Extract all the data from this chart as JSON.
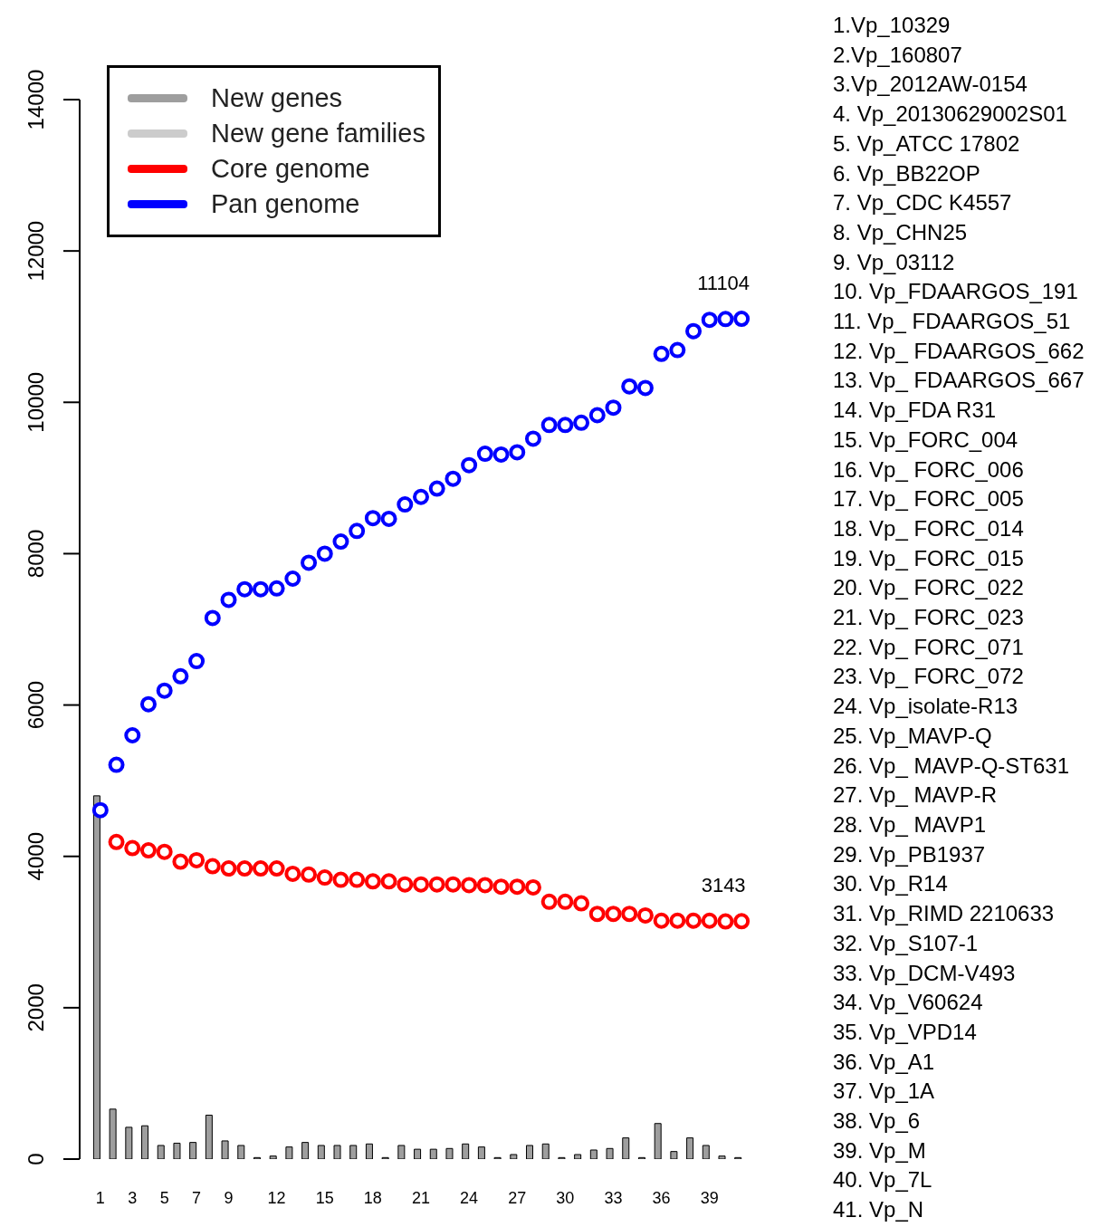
{
  "chart_data": {
    "type": "bar",
    "categories": [
      "1",
      null,
      "3",
      null,
      "5",
      null,
      "7",
      null,
      "9",
      null,
      null,
      "12",
      null,
      null,
      "15",
      null,
      null,
      "18",
      null,
      null,
      "21",
      null,
      null,
      "24",
      null,
      null,
      "27",
      null,
      null,
      "30",
      null,
      null,
      "33",
      null,
      null,
      "36",
      null,
      null,
      "39",
      null,
      null
    ],
    "series": [
      {
        "name": "New genes",
        "color": "#9e9e9e",
        "values": [
          4800,
          660,
          420,
          440,
          180,
          210,
          220,
          580,
          240,
          180,
          20,
          40,
          160,
          220,
          180,
          180,
          180,
          200,
          20,
          180,
          130,
          130,
          140,
          200,
          160,
          20,
          60,
          180,
          200,
          20,
          60,
          120,
          140,
          280,
          20,
          470,
          100,
          280,
          180,
          40,
          20
        ]
      },
      {
        "name": "New gene families",
        "color": "#cccccc",
        "values": [
          null,
          null,
          null,
          null,
          null,
          null,
          null,
          null,
          null,
          null,
          null,
          null,
          null,
          null,
          null,
          null,
          null,
          null,
          null,
          null,
          null,
          null,
          null,
          null,
          null,
          null,
          null,
          null,
          null,
          null,
          null,
          null,
          null,
          null,
          null,
          null,
          null,
          null,
          null,
          null,
          null
        ]
      },
      {
        "name": "Core genome",
        "type": "scatter",
        "color": "#ff0000",
        "values": [
          null,
          4190,
          4110,
          4080,
          4060,
          3930,
          3950,
          3870,
          3840,
          3840,
          3840,
          3840,
          3770,
          3760,
          3720,
          3690,
          3690,
          3670,
          3670,
          3630,
          3630,
          3630,
          3630,
          3620,
          3620,
          3600,
          3600,
          3590,
          3400,
          3400,
          3380,
          3240,
          3240,
          3240,
          3220,
          3150,
          3150,
          3150,
          3150,
          3140,
          3143
        ]
      },
      {
        "name": "Pan genome",
        "type": "scatter",
        "color": "#0000ff",
        "values": [
          4610,
          5210,
          5600,
          6010,
          6190,
          6380,
          6580,
          7150,
          7390,
          7530,
          7530,
          7540,
          7670,
          7880,
          8000,
          8160,
          8300,
          8470,
          8460,
          8650,
          8750,
          8860,
          8990,
          9170,
          9320,
          9310,
          9340,
          9520,
          9700,
          9700,
          9730,
          9830,
          9930,
          10210,
          10190,
          10640,
          10690,
          10940,
          11090,
          11100,
          11104
        ]
      }
    ],
    "ylim": [
      0,
      14000
    ],
    "yticks": [
      0,
      2000,
      4000,
      6000,
      8000,
      10000,
      12000,
      14000
    ],
    "legend": "top left",
    "marker": "circle",
    "grid": false,
    "annotations": [
      {
        "text": "11104",
        "y": 11104
      },
      {
        "text": "3143",
        "y": 3143
      },
      "1.Vp_10329",
      "2.Vp_160807",
      "3.Vp_2012AW-0154",
      "4. Vp_20130629002S01",
      "5. Vp_ATCC 17802",
      "6. Vp_BB22OP",
      "7. Vp_CDC K4557",
      "8. Vp_CHN25",
      "9. Vp_03112",
      "10. Vp_FDAARGOS_191",
      "11. Vp_ FDAARGOS_51",
      "12. Vp_ FDAARGOS_662",
      "13. Vp_ FDAARGOS_667",
      "14. Vp_FDA R31",
      "15. Vp_FORC_004",
      "16. Vp_ FORC_006",
      "17. Vp_ FORC_005",
      "18. Vp_ FORC_014",
      "19. Vp_ FORC_015",
      "20. Vp_ FORC_022",
      "21. Vp_ FORC_023",
      "22. Vp_ FORC_071",
      "23. Vp_ FORC_072",
      "24. Vp_isolate-R13",
      "25. Vp_MAVP-Q",
      "26. Vp_ MAVP-Q-ST631",
      "27. Vp_ MAVP-R",
      "28. Vp_ MAVP1",
      "29. Vp_PB1937",
      "30. Vp_R14",
      "31. Vp_RIMD 2210633",
      "32. Vp_S107-1",
      "33. Vp_DCM-V493",
      "34. Vp_V60624",
      "35. Vp_VPD14",
      "36. Vp_A1",
      "37. Vp_1A",
      "38. Vp_6",
      "39. Vp_M",
      "40. Vp_7L",
      "41. Vp_N"
    ]
  }
}
